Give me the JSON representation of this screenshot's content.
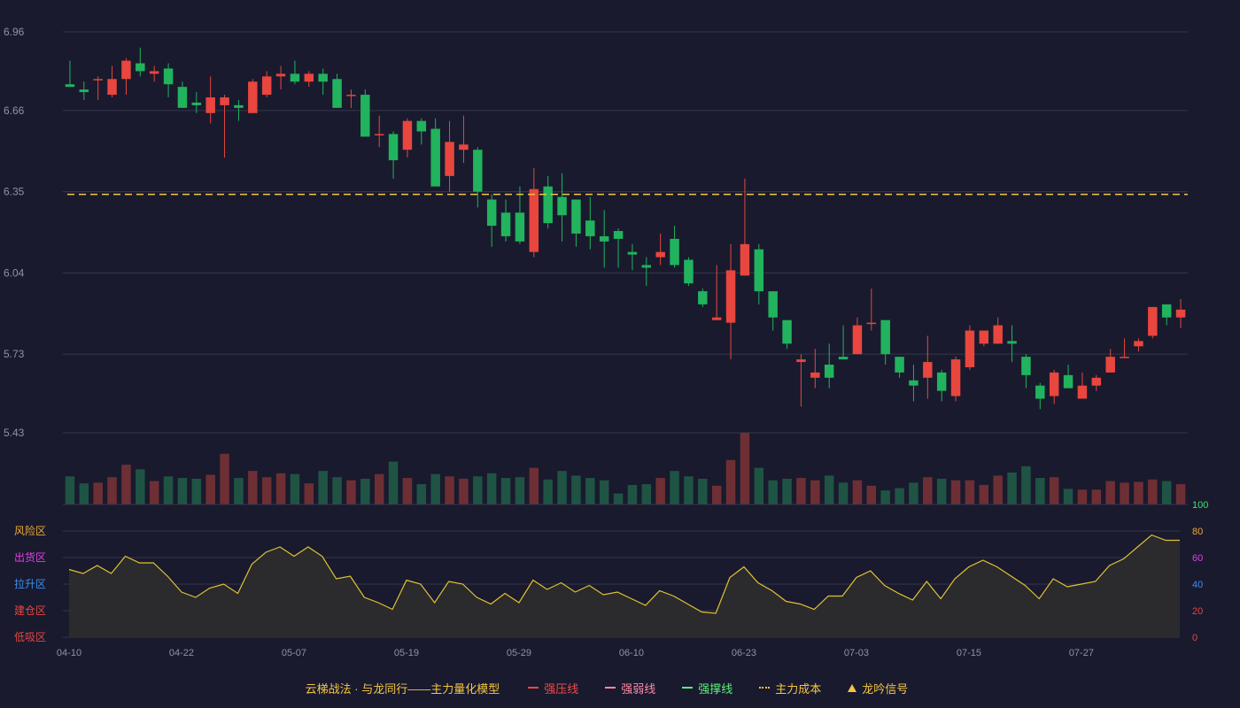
{
  "colors": {
    "background": "#191a2e",
    "up": "#e8463e",
    "down": "#21b35d",
    "vol_up": "#6e2f34",
    "vol_down": "#1f5444",
    "grid": "#35374a",
    "cost_line": "#f5c542",
    "osc_line": "#e0c232",
    "osc_fill": "#2e2c2c",
    "axis_text": "#8f93a3"
  },
  "legend": {
    "title": "云梯战法 · 与龙同行——主力量化模型",
    "items": [
      {
        "label": "强压线",
        "color": "#f14a48",
        "style": "solid",
        "icon": "line-swatch"
      },
      {
        "label": "强弱线",
        "color": "#ff8aa5",
        "style": "dashed",
        "icon": "line-swatch"
      },
      {
        "label": "强撑线",
        "color": "#5df07a",
        "style": "solid",
        "icon": "line-swatch"
      },
      {
        "label": "主力成本",
        "color": "#f5c542",
        "style": "dotted",
        "icon": "line-swatch"
      },
      {
        "label": "龙吟信号",
        "color": "#f5c542",
        "style": "triangle",
        "icon": "triangle-icon"
      }
    ]
  },
  "chart_data": {
    "type": "candlestick",
    "price_axis": {
      "ticks": [
        "6.96",
        "6.66",
        "6.35",
        "6.04",
        "5.73",
        "5.43"
      ],
      "ylim": [
        5.43,
        6.96
      ]
    },
    "cost_line": 6.34,
    "x_ticks": [
      {
        "index": 0,
        "label": "04-10"
      },
      {
        "index": 8,
        "label": "04-22"
      },
      {
        "index": 16,
        "label": "05-07"
      },
      {
        "index": 24,
        "label": "05-19"
      },
      {
        "index": 32,
        "label": "05-29"
      },
      {
        "index": 40,
        "label": "06-10"
      },
      {
        "index": 48,
        "label": "06-23"
      },
      {
        "index": 56,
        "label": "07-03"
      },
      {
        "index": 64,
        "label": "07-15"
      },
      {
        "index": 72,
        "label": "07-27"
      }
    ],
    "ohlc": [
      [
        6.76,
        6.75,
        6.85,
        6.75
      ],
      [
        6.74,
        6.73,
        6.77,
        6.7
      ],
      [
        6.78,
        6.78,
        6.79,
        6.7
      ],
      [
        6.72,
        6.78,
        6.83,
        6.71
      ],
      [
        6.78,
        6.85,
        6.86,
        6.72
      ],
      [
        6.84,
        6.81,
        6.9,
        6.79
      ],
      [
        6.8,
        6.81,
        6.83,
        6.77
      ],
      [
        6.82,
        6.76,
        6.84,
        6.71
      ],
      [
        6.75,
        6.67,
        6.77,
        6.67
      ],
      [
        6.69,
        6.68,
        6.73,
        6.65
      ],
      [
        6.65,
        6.71,
        6.79,
        6.61
      ],
      [
        6.68,
        6.71,
        6.72,
        6.48
      ],
      [
        6.68,
        6.67,
        6.7,
        6.62
      ],
      [
        6.65,
        6.77,
        6.78,
        6.65
      ],
      [
        6.72,
        6.79,
        6.81,
        6.71
      ],
      [
        6.79,
        6.8,
        6.83,
        6.74
      ],
      [
        6.8,
        6.77,
        6.85,
        6.76
      ],
      [
        6.77,
        6.8,
        6.81,
        6.75
      ],
      [
        6.8,
        6.77,
        6.82,
        6.72
      ],
      [
        6.78,
        6.67,
        6.8,
        6.67
      ],
      [
        6.72,
        6.72,
        6.74,
        6.67
      ],
      [
        6.72,
        6.56,
        6.74,
        6.56
      ],
      [
        6.57,
        6.57,
        6.64,
        6.52
      ],
      [
        6.57,
        6.47,
        6.58,
        6.4
      ],
      [
        6.51,
        6.62,
        6.63,
        6.48
      ],
      [
        6.62,
        6.58,
        6.63,
        6.53
      ],
      [
        6.59,
        6.37,
        6.63,
        6.37
      ],
      [
        6.41,
        6.54,
        6.62,
        6.35
      ],
      [
        6.51,
        6.53,
        6.64,
        6.46
      ],
      [
        6.51,
        6.35,
        6.52,
        6.29
      ],
      [
        6.32,
        6.22,
        6.34,
        6.14
      ],
      [
        6.27,
        6.18,
        6.32,
        6.16
      ],
      [
        6.27,
        6.16,
        6.37,
        6.15
      ],
      [
        6.12,
        6.36,
        6.44,
        6.1
      ],
      [
        6.37,
        6.23,
        6.41,
        6.21
      ],
      [
        6.33,
        6.26,
        6.42,
        6.16
      ],
      [
        6.32,
        6.19,
        6.32,
        6.14
      ],
      [
        6.24,
        6.18,
        6.33,
        6.13
      ],
      [
        6.18,
        6.16,
        6.28,
        6.06
      ],
      [
        6.2,
        6.17,
        6.21,
        6.06
      ],
      [
        6.12,
        6.11,
        6.15,
        6.05
      ],
      [
        6.07,
        6.06,
        6.1,
        5.99
      ],
      [
        6.1,
        6.12,
        6.19,
        6.07
      ],
      [
        6.17,
        6.07,
        6.22,
        6.06
      ],
      [
        6.09,
        6.0,
        6.1,
        5.99
      ],
      [
        5.97,
        5.92,
        5.98,
        5.91
      ],
      [
        5.86,
        5.87,
        6.07,
        5.86
      ],
      [
        5.85,
        6.05,
        6.15,
        5.71
      ],
      [
        6.03,
        6.15,
        6.4,
        6.03
      ],
      [
        6.13,
        5.97,
        6.15,
        5.92
      ],
      [
        5.97,
        5.87,
        5.97,
        5.82
      ],
      [
        5.86,
        5.77,
        5.86,
        5.75
      ],
      [
        5.7,
        5.71,
        5.73,
        5.53
      ],
      [
        5.64,
        5.66,
        5.75,
        5.6
      ],
      [
        5.69,
        5.64,
        5.77,
        5.6
      ],
      [
        5.72,
        5.71,
        5.84,
        5.71
      ],
      [
        5.73,
        5.84,
        5.87,
        5.73
      ],
      [
        5.85,
        5.85,
        5.98,
        5.82
      ],
      [
        5.86,
        5.73,
        5.86,
        5.69
      ],
      [
        5.72,
        5.66,
        5.72,
        5.64
      ],
      [
        5.63,
        5.61,
        5.69,
        5.55
      ],
      [
        5.64,
        5.7,
        5.8,
        5.56
      ],
      [
        5.66,
        5.59,
        5.67,
        5.55
      ],
      [
        5.57,
        5.71,
        5.72,
        5.55
      ],
      [
        5.68,
        5.82,
        5.84,
        5.67
      ],
      [
        5.77,
        5.82,
        5.82,
        5.76
      ],
      [
        5.77,
        5.84,
        5.87,
        5.77
      ],
      [
        5.78,
        5.77,
        5.84,
        5.7
      ],
      [
        5.72,
        5.65,
        5.73,
        5.6
      ],
      [
        5.61,
        5.56,
        5.62,
        5.52
      ],
      [
        5.57,
        5.66,
        5.67,
        5.54
      ],
      [
        5.65,
        5.6,
        5.69,
        5.6
      ],
      [
        5.56,
        5.61,
        5.66,
        5.56
      ],
      [
        5.61,
        5.64,
        5.65,
        5.59
      ],
      [
        5.66,
        5.72,
        5.75,
        5.66
      ],
      [
        5.72,
        5.72,
        5.79,
        5.72
      ],
      [
        5.76,
        5.78,
        5.79,
        5.74
      ],
      [
        5.8,
        5.91,
        5.91,
        5.79
      ],
      [
        5.92,
        5.87,
        5.92,
        5.84
      ],
      [
        5.87,
        5.9,
        5.94,
        5.83
      ]
    ],
    "volume": [
      36,
      27,
      28,
      35,
      51,
      45,
      30,
      36,
      34,
      33,
      38,
      65,
      34,
      43,
      35,
      40,
      39,
      27,
      43,
      35,
      31,
      33,
      39,
      55,
      34,
      26,
      39,
      36,
      33,
      36,
      40,
      34,
      35,
      47,
      32,
      43,
      37,
      34,
      31,
      14,
      25,
      26,
      34,
      43,
      36,
      33,
      24,
      57,
      92,
      47,
      31,
      33,
      34,
      31,
      37,
      28,
      31,
      24,
      18,
      21,
      28,
      35,
      33,
      31,
      31,
      25,
      37,
      41,
      49,
      34,
      35,
      20,
      19,
      19,
      30,
      28,
      29,
      32,
      30,
      26
    ],
    "oscillator": {
      "ylim": [
        0,
        100
      ],
      "right_ticks": [
        {
          "value": 100,
          "label": "100",
          "color": "#39e86b"
        },
        {
          "value": 80,
          "label": "80",
          "color": "#f0a830"
        },
        {
          "value": 60,
          "label": "60",
          "color": "#e040e8"
        },
        {
          "value": 40,
          "label": "40",
          "color": "#3b8ef0"
        },
        {
          "value": 20,
          "label": "20",
          "color": "#e8463e"
        },
        {
          "value": 0,
          "label": "0",
          "color": "#e8463e"
        }
      ],
      "zones": [
        {
          "value": 80,
          "label": "风险区",
          "color": "#f0a830"
        },
        {
          "value": 60,
          "label": "出货区",
          "color": "#e040e8"
        },
        {
          "value": 40,
          "label": "拉升区",
          "color": "#3b8ef0"
        },
        {
          "value": 20,
          "label": "建仓区",
          "color": "#e8463e"
        },
        {
          "value": 0,
          "label": "低吸区",
          "color": "#e8463e"
        }
      ],
      "values": [
        51,
        48,
        54,
        48,
        61,
        56,
        56,
        46,
        34,
        30,
        37,
        40,
        33,
        55,
        64,
        68,
        61,
        68,
        61,
        44,
        46,
        30,
        26,
        21,
        43,
        40,
        26,
        42,
        40,
        30,
        25,
        33,
        26,
        43,
        36,
        41,
        34,
        39,
        32,
        34,
        29,
        24,
        35,
        31,
        25,
        19,
        18,
        45,
        53,
        41,
        35,
        27,
        25,
        21,
        31,
        31,
        45,
        50,
        39,
        33,
        28,
        42,
        29,
        44,
        53,
        58,
        53,
        46,
        39,
        29,
        44,
        38,
        40,
        42,
        54,
        59,
        68,
        77,
        73,
        73
      ]
    }
  }
}
